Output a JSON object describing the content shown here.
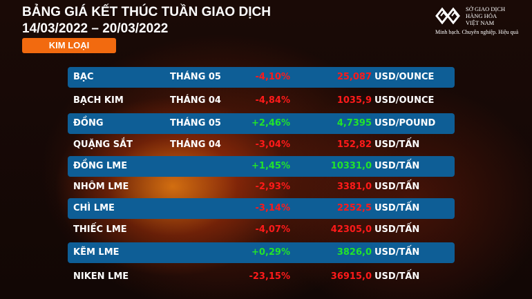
{
  "header": {
    "title": "BẢNG GIÁ KẾT THÚC TUẦN GIAO DỊCH",
    "date_range": "14/03/2022 – 20/03/2022",
    "category": "KIM LOẠI"
  },
  "logo": {
    "line1": "SỞ GIAO DỊCH",
    "line2": "HÀNG HÓA",
    "line3": "VIỆT NAM",
    "slogan": "Minh bạch. Chuyên nghiệp. Hiệu quả"
  },
  "colors": {
    "row_blue": "#0e5e96",
    "negative": "#ff1a1a",
    "positive": "#22e32b",
    "badge": "#f26a0f"
  },
  "rows": [
    {
      "name": "BẠC",
      "term": "THÁNG 05",
      "change": "-4,10%",
      "price": "25,087",
      "unit": "USD/OUNCE",
      "dir": "neg"
    },
    {
      "name": "BẠCH KIM",
      "term": "THÁNG 04",
      "change": "-4,84%",
      "price": "1035,9",
      "unit": "USD/OUNCE",
      "dir": "neg"
    },
    {
      "name": "ĐỒNG",
      "term": "THÁNG 05",
      "change": "+2,46%",
      "price": "4,7395",
      "unit": "USD/POUND",
      "dir": "pos"
    },
    {
      "name": "QUẶNG SẮT",
      "term": "THÁNG 04",
      "change": "-3,04%",
      "price": "152,82",
      "unit": "USD/TẤN",
      "dir": "neg"
    },
    {
      "name": "ĐỒNG LME",
      "term": "",
      "change": "+1,45%",
      "price": "10331,0",
      "unit": "USD/TẤN",
      "dir": "pos"
    },
    {
      "name": "NHÔM LME",
      "term": "",
      "change": "-2,93%",
      "price": "3381,0",
      "unit": "USD/TẤN",
      "dir": "neg"
    },
    {
      "name": "CHÌ LME",
      "term": "",
      "change": "-3,14%",
      "price": "2252,5",
      "unit": "USD/TẤN",
      "dir": "neg"
    },
    {
      "name": "THIẾC LME",
      "term": "",
      "change": "-4,07%",
      "price": "42305,0",
      "unit": "USD/TẤN",
      "dir": "neg"
    },
    {
      "name": "KẼM LME",
      "term": "",
      "change": "+0,29%",
      "price": "3826,0",
      "unit": "USD/TẤN",
      "dir": "pos"
    },
    {
      "name": "NIKEN LME",
      "term": "",
      "change": "-23,15%",
      "price": "36915,0",
      "unit": "USD/TẤN",
      "dir": "neg"
    }
  ]
}
